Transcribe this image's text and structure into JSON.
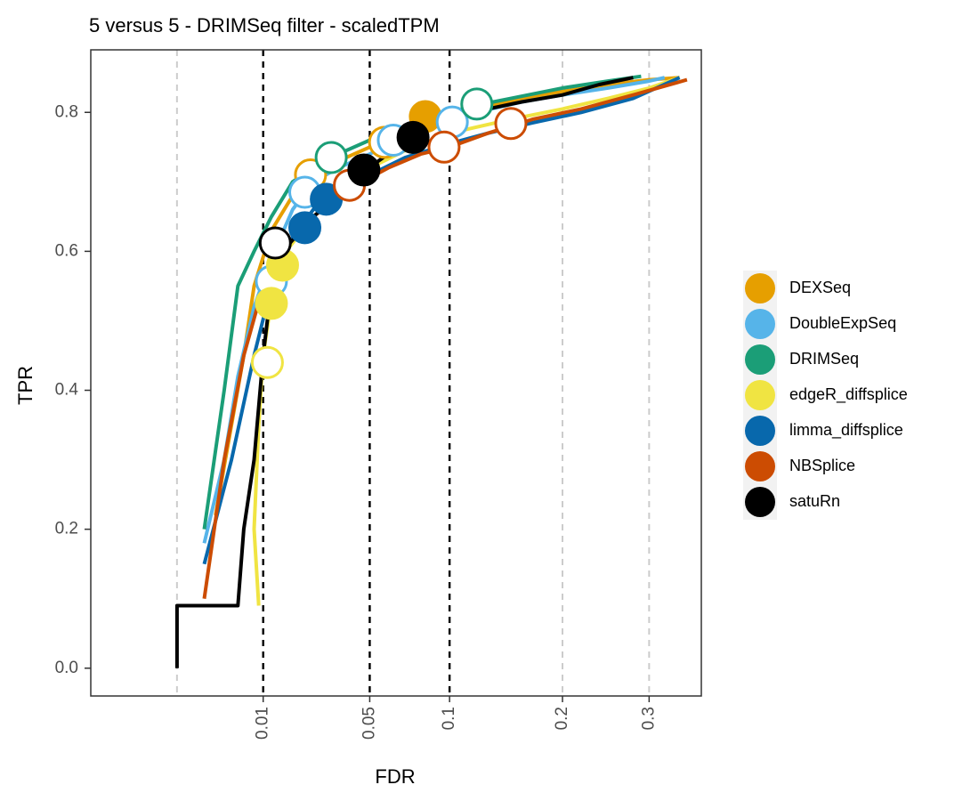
{
  "chart_data": {
    "type": "line",
    "title": "5 versus 5 - DRIMSeq filter - scaledTPM",
    "xlabel": "FDR",
    "ylabel": "TPR",
    "xlim": [
      -0.01,
      0.37
    ],
    "ylim": [
      -0.04,
      0.89
    ],
    "x_scale": "sqrt",
    "x_ticks": [
      {
        "value": 0.01,
        "label": "0.01"
      },
      {
        "value": 0.05,
        "label": "0.05"
      },
      {
        "value": 0.1,
        "label": "0.1"
      },
      {
        "value": 0.2,
        "label": "0.2"
      },
      {
        "value": 0.3,
        "label": "0.3"
      }
    ],
    "y_ticks": [
      {
        "value": 0.0,
        "label": "0.0"
      },
      {
        "value": 0.2,
        "label": "0.2"
      },
      {
        "value": 0.4,
        "label": "0.4"
      },
      {
        "value": 0.6,
        "label": "0.6"
      },
      {
        "value": 0.8,
        "label": "0.8"
      }
    ],
    "grid": "major",
    "legend_position": "right",
    "reference_lines": [
      {
        "x": 0.01,
        "style": "dashed",
        "color": "#000000"
      },
      {
        "x": 0.05,
        "style": "dashed",
        "color": "#000000"
      },
      {
        "x": 0.1,
        "style": "dashed",
        "color": "#000000"
      }
    ],
    "series": [
      {
        "name": "DEXSeq",
        "color": "#E69F00",
        "curve": [
          [
            0.002,
            0.22
          ],
          [
            0.004,
            0.35
          ],
          [
            0.006,
            0.45
          ],
          [
            0.008,
            0.55
          ],
          [
            0.012,
            0.63
          ],
          [
            0.018,
            0.68
          ],
          [
            0.025,
            0.71
          ],
          [
            0.035,
            0.73
          ],
          [
            0.05,
            0.75
          ],
          [
            0.07,
            0.775
          ],
          [
            0.09,
            0.79
          ],
          [
            0.12,
            0.805
          ],
          [
            0.16,
            0.82
          ],
          [
            0.2,
            0.83
          ],
          [
            0.25,
            0.84
          ],
          [
            0.3,
            0.847
          ],
          [
            0.34,
            0.85
          ]
        ],
        "points": [
          {
            "fdr": 0.024,
            "tpr": 0.71,
            "filled": false
          },
          {
            "fdr": 0.058,
            "tpr": 0.757,
            "filled": false
          },
          {
            "fdr": 0.083,
            "tpr": 0.794,
            "filled": true
          }
        ]
      },
      {
        "name": "DoubleExpSeq",
        "color": "#56B4E9",
        "curve": [
          [
            0.001,
            0.18
          ],
          [
            0.003,
            0.3
          ],
          [
            0.005,
            0.42
          ],
          [
            0.008,
            0.52
          ],
          [
            0.012,
            0.59
          ],
          [
            0.018,
            0.66
          ],
          [
            0.025,
            0.7
          ],
          [
            0.035,
            0.72
          ],
          [
            0.05,
            0.74
          ],
          [
            0.065,
            0.76
          ],
          [
            0.09,
            0.78
          ],
          [
            0.12,
            0.8
          ],
          [
            0.16,
            0.815
          ],
          [
            0.2,
            0.825
          ],
          [
            0.25,
            0.835
          ],
          [
            0.3,
            0.845
          ],
          [
            0.32,
            0.85
          ]
        ],
        "points": [
          {
            "fdr": 0.012,
            "tpr": 0.557,
            "filled": false
          },
          {
            "fdr": 0.022,
            "tpr": 0.685,
            "filled": false
          },
          {
            "fdr": 0.063,
            "tpr": 0.76,
            "filled": false
          },
          {
            "fdr": 0.102,
            "tpr": 0.786,
            "filled": false
          }
        ]
      },
      {
        "name": "DRIMSeq",
        "color": "#1B9E77",
        "curve": [
          [
            0.001,
            0.2
          ],
          [
            0.003,
            0.4
          ],
          [
            0.005,
            0.55
          ],
          [
            0.008,
            0.6
          ],
          [
            0.012,
            0.65
          ],
          [
            0.018,
            0.7
          ],
          [
            0.025,
            0.72
          ],
          [
            0.035,
            0.74
          ],
          [
            0.05,
            0.76
          ],
          [
            0.07,
            0.78
          ],
          [
            0.09,
            0.795
          ],
          [
            0.12,
            0.81
          ],
          [
            0.15,
            0.82
          ],
          [
            0.2,
            0.835
          ],
          [
            0.25,
            0.845
          ],
          [
            0.29,
            0.852
          ]
        ],
        "points": [
          {
            "fdr": 0.032,
            "tpr": 0.735,
            "filled": false
          },
          {
            "fdr": 0.121,
            "tpr": 0.812,
            "filled": false
          }
        ]
      },
      {
        "name": "edgeR_diffsplice",
        "color": "#F0E442",
        "curve": [
          [
            0.009,
            0.09
          ],
          [
            0.008,
            0.2
          ],
          [
            0.009,
            0.35
          ],
          [
            0.01,
            0.45
          ],
          [
            0.012,
            0.53
          ],
          [
            0.016,
            0.6
          ],
          [
            0.025,
            0.65
          ],
          [
            0.035,
            0.68
          ],
          [
            0.05,
            0.72
          ],
          [
            0.07,
            0.745
          ],
          [
            0.1,
            0.77
          ],
          [
            0.15,
            0.79
          ],
          [
            0.2,
            0.805
          ],
          [
            0.25,
            0.82
          ],
          [
            0.3,
            0.835
          ],
          [
            0.34,
            0.85
          ]
        ],
        "points": [
          {
            "fdr": 0.011,
            "tpr": 0.44,
            "filled": false
          },
          {
            "fdr": 0.012,
            "tpr": 0.525,
            "filled": true
          },
          {
            "fdr": 0.015,
            "tpr": 0.58,
            "filled": true
          }
        ]
      },
      {
        "name": "limma_diffsplice",
        "color": "#0868AC",
        "curve": [
          [
            0.001,
            0.15
          ],
          [
            0.004,
            0.3
          ],
          [
            0.008,
            0.45
          ],
          [
            0.012,
            0.55
          ],
          [
            0.018,
            0.62
          ],
          [
            0.025,
            0.66
          ],
          [
            0.035,
            0.68
          ],
          [
            0.05,
            0.71
          ],
          [
            0.07,
            0.735
          ],
          [
            0.1,
            0.755
          ],
          [
            0.13,
            0.77
          ],
          [
            0.17,
            0.785
          ],
          [
            0.22,
            0.8
          ],
          [
            0.28,
            0.82
          ],
          [
            0.34,
            0.85
          ]
        ],
        "points": [
          {
            "fdr": 0.022,
            "tpr": 0.634,
            "filled": true
          },
          {
            "fdr": 0.03,
            "tpr": 0.675,
            "filled": true
          }
        ]
      },
      {
        "name": "NBSplice",
        "color": "#CC4C02",
        "curve": [
          [
            0.001,
            0.1
          ],
          [
            0.003,
            0.3
          ],
          [
            0.006,
            0.45
          ],
          [
            0.01,
            0.55
          ],
          [
            0.015,
            0.6
          ],
          [
            0.025,
            0.65
          ],
          [
            0.04,
            0.69
          ],
          [
            0.06,
            0.72
          ],
          [
            0.08,
            0.74
          ],
          [
            0.1,
            0.75
          ],
          [
            0.13,
            0.77
          ],
          [
            0.17,
            0.79
          ],
          [
            0.22,
            0.805
          ],
          [
            0.28,
            0.825
          ],
          [
            0.35,
            0.847
          ]
        ],
        "points": [
          {
            "fdr": 0.04,
            "tpr": 0.695,
            "filled": false
          },
          {
            "fdr": 0.096,
            "tpr": 0.75,
            "filled": false
          },
          {
            "fdr": 0.15,
            "tpr": 0.784,
            "filled": false
          }
        ]
      },
      {
        "name": "satuRn",
        "color": "#000000",
        "curve": [
          [
            0.0,
            0.0
          ],
          [
            0.0,
            0.09
          ],
          [
            0.005,
            0.09
          ],
          [
            0.006,
            0.2
          ],
          [
            0.008,
            0.3
          ],
          [
            0.01,
            0.45
          ],
          [
            0.012,
            0.55
          ],
          [
            0.015,
            0.6
          ],
          [
            0.025,
            0.65
          ],
          [
            0.035,
            0.68
          ],
          [
            0.047,
            0.715
          ],
          [
            0.06,
            0.74
          ],
          [
            0.075,
            0.765
          ],
          [
            0.1,
            0.79
          ],
          [
            0.13,
            0.805
          ],
          [
            0.16,
            0.815
          ],
          [
            0.2,
            0.825
          ],
          [
            0.24,
            0.84
          ],
          [
            0.28,
            0.85
          ]
        ],
        "points": [
          {
            "fdr": 0.013,
            "tpr": 0.612,
            "filled": false
          },
          {
            "fdr": 0.047,
            "tpr": 0.717,
            "filled": true
          },
          {
            "fdr": 0.075,
            "tpr": 0.764,
            "filled": true
          }
        ]
      }
    ]
  }
}
